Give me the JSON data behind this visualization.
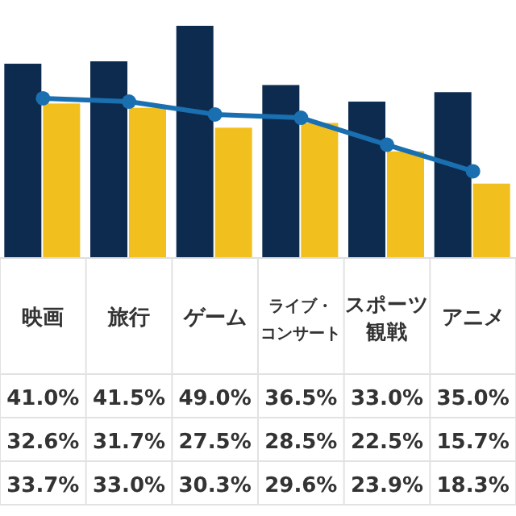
{
  "chart_data": {
    "type": "bar",
    "categories": [
      "映画",
      "旅行",
      "ゲーム",
      "ライブ・コンサート",
      "スポーツ観戦",
      "アニメ"
    ],
    "series": [
      {
        "color": "#0d2b4e",
        "values": [
          41.0,
          41.5,
          49.0,
          36.5,
          33.0,
          35.0
        ],
        "value_labels": [
          "41.0%",
          "41.5%",
          "49.0%",
          "36.5%",
          "33.0%",
          "35.0%"
        ]
      },
      {
        "color": "#f2c01e",
        "values": [
          32.6,
          31.7,
          27.5,
          28.5,
          22.5,
          15.7
        ],
        "value_labels": [
          "32.6%",
          "31.7%",
          "27.5%",
          "28.5%",
          "22.5%",
          "15.7%"
        ]
      },
      {
        "type": "line",
        "color": "#1a6fb0",
        "marker": "circle",
        "values": [
          33.7,
          33.0,
          30.3,
          29.6,
          23.9,
          18.3
        ],
        "value_labels": [
          "33.7%",
          "33.0%",
          "30.3%",
          "29.6%",
          "23.9%",
          "18.3%"
        ]
      }
    ]
  }
}
